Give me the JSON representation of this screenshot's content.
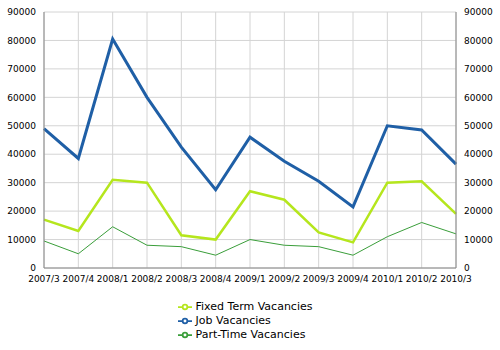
{
  "chart_data": {
    "type": "line",
    "categories": [
      "2007/3",
      "2007/4",
      "2008/1",
      "2008/2",
      "2008/3",
      "2008/4",
      "2009/1",
      "2009/2",
      "2009/3",
      "2009/4",
      "2010/1",
      "2010/2",
      "2010/3"
    ],
    "series": [
      {
        "name": "Job Vacancies",
        "color": "#1f5fa6",
        "values": [
          49000,
          38500,
          80500,
          60000,
          42500,
          27500,
          46000,
          37500,
          30500,
          21500,
          50000,
          48500,
          36500
        ]
      },
      {
        "name": "Part-Time Vacancies",
        "color": "#3a9e3a",
        "values": [
          9500,
          5000,
          14500,
          8000,
          7500,
          4500,
          10000,
          8000,
          7500,
          4500,
          11000,
          16000,
          12000
        ]
      },
      {
        "name": "Fixed Term Vacancies",
        "color": "#b5e61d",
        "values": [
          17000,
          13000,
          31000,
          30000,
          11500,
          10000,
          27000,
          24000,
          12500,
          9000,
          30000,
          30500,
          19000
        ]
      }
    ],
    "ylim": [
      0,
      90000
    ],
    "yticks": [
      0,
      10000,
      20000,
      30000,
      40000,
      50000,
      60000,
      70000,
      80000,
      90000
    ],
    "y2lim": [
      0,
      90000
    ],
    "y2ticks": [
      0,
      10000,
      20000,
      30000,
      40000,
      50000,
      60000,
      70000,
      80000,
      90000
    ],
    "grid": true,
    "legend": "bottom"
  }
}
